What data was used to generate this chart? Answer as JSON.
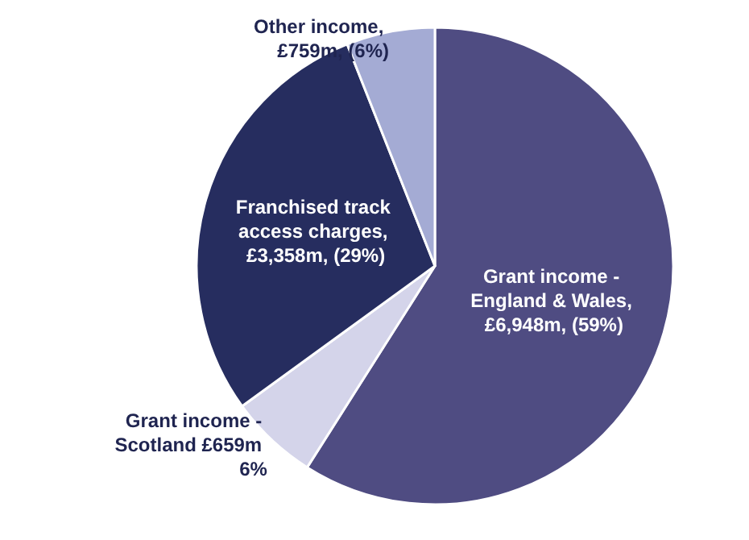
{
  "chart_data": {
    "type": "pie",
    "categories": [
      "Grant income - England & Wales",
      "Grant income - Scotland",
      "Franchised track access charges",
      "Other income"
    ],
    "values": [
      59,
      6,
      29,
      6
    ],
    "value_labels": [
      ", £6,948m, (59%)",
      " £659m 6%",
      ", £3,358m, (29%)",
      ", £759m, (6%)"
    ],
    "colors": [
      "#4f4c82",
      "#d4d4ea",
      "#262d5f",
      "#a4abd4"
    ],
    "legend": false
  }
}
